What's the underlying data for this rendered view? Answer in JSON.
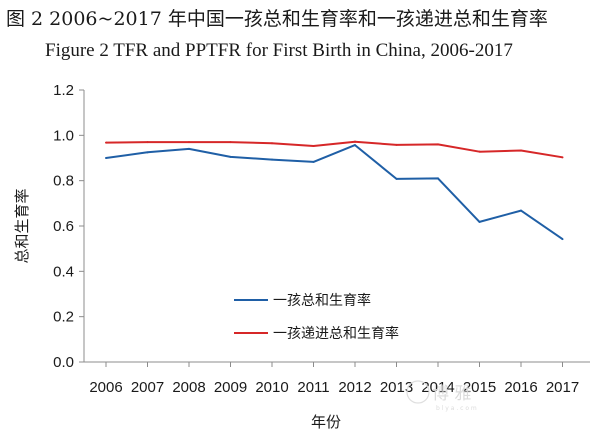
{
  "chart_data": {
    "type": "line",
    "title": "图 2  2006~2017 年中国一孩总和生育率和一孩递进总和生育率",
    "subtitle": "Figure 2 TFR and PPTFR for First Birth in China, 2006-2017",
    "xlabel": "年份",
    "ylabel": "总和生育率",
    "categories": [
      "2006",
      "2007",
      "2008",
      "2009",
      "2010",
      "2011",
      "2012",
      "2013",
      "2014",
      "2015",
      "2016",
      "2017"
    ],
    "ylim": [
      0,
      1.2
    ],
    "yticks": [
      "0.0",
      "0.2",
      "0.4",
      "0.6",
      "0.8",
      "1.0",
      "1.2"
    ],
    "grid": false,
    "legend_position": "bottom-center",
    "series": [
      {
        "name": "一孩总和生育率",
        "color": "#1f5fa6",
        "values": [
          0.9,
          0.925,
          0.94,
          0.905,
          0.893,
          0.883,
          0.957,
          0.808,
          0.81,
          0.618,
          0.668,
          0.542
        ]
      },
      {
        "name": "一孩递进总和生育率",
        "color": "#d62728",
        "values": [
          0.968,
          0.97,
          0.97,
          0.97,
          0.965,
          0.953,
          0.972,
          0.958,
          0.96,
          0.928,
          0.933,
          0.903
        ]
      }
    ]
  },
  "watermark": {
    "text": "博 雅",
    "small_text": "b l y a . c o m"
  }
}
